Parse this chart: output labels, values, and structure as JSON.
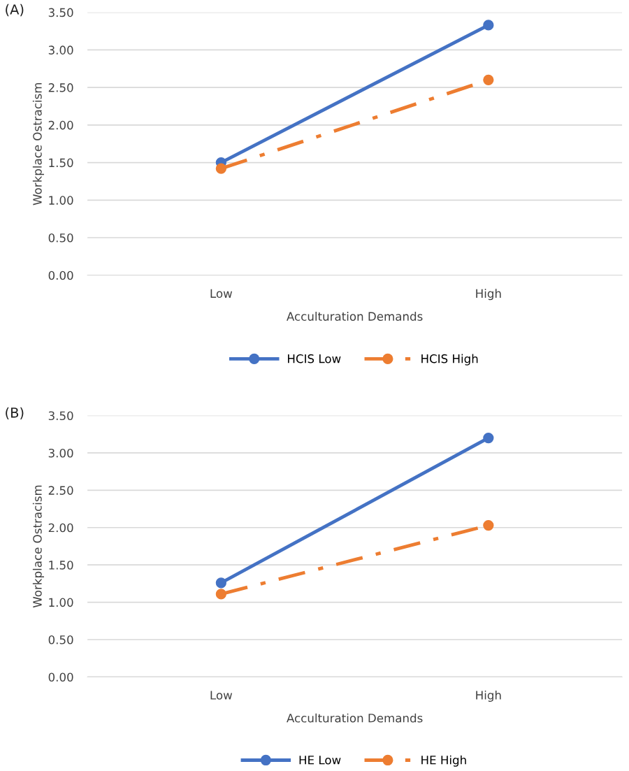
{
  "chart_data": [
    {
      "type": "line",
      "title": "(A)",
      "xlabel": "Acculturation Demands",
      "ylabel": "Workplace Ostracism",
      "categories": [
        "Low",
        "High"
      ],
      "ylim": [
        0,
        3.5
      ],
      "yticks": [
        {
          "value": 0,
          "label": "0.00"
        },
        {
          "value": 0.5,
          "label": "0.50"
        },
        {
          "value": 1,
          "label": "1.00"
        },
        {
          "value": 1.5,
          "label": "1.50"
        },
        {
          "value": 2,
          "label": "2.00"
        },
        {
          "value": 2.5,
          "label": "2.50"
        },
        {
          "value": 3,
          "label": "3.00"
        },
        {
          "value": 3.5,
          "label": "3.50"
        }
      ],
      "grid": "y",
      "legend": "bottom",
      "marker": "circle",
      "series": [
        {
          "name": "HCIS Low",
          "color": "#4472c4",
          "values": [
            1.5,
            3.33
          ],
          "line_style": "solid"
        },
        {
          "name": "HCIS High",
          "color": "#ed7d31",
          "values": [
            1.42,
            2.6
          ],
          "line_style": "dashdot"
        }
      ]
    },
    {
      "type": "line",
      "title": "(B)",
      "xlabel": "Acculturation Demands",
      "ylabel": "Workplace Ostracism",
      "categories": [
        "Low",
        "High"
      ],
      "ylim": [
        0,
        3.5
      ],
      "yticks": [
        {
          "value": 0,
          "label": "0.00"
        },
        {
          "value": 0.5,
          "label": "0.50"
        },
        {
          "value": 1,
          "label": "1.00"
        },
        {
          "value": 1.5,
          "label": "1.50"
        },
        {
          "value": 2,
          "label": "2.00"
        },
        {
          "value": 2.5,
          "label": "2.50"
        },
        {
          "value": 3,
          "label": "3.00"
        },
        {
          "value": 3.5,
          "label": "3.50"
        }
      ],
      "grid": "y",
      "legend": "bottom",
      "marker": "circle",
      "series": [
        {
          "name": "HE Low",
          "color": "#4472c4",
          "values": [
            1.26,
            3.2
          ],
          "line_style": "solid"
        },
        {
          "name": "HE High",
          "color": "#ed7d31",
          "values": [
            1.11,
            2.03
          ],
          "line_style": "dashdot"
        }
      ]
    }
  ]
}
